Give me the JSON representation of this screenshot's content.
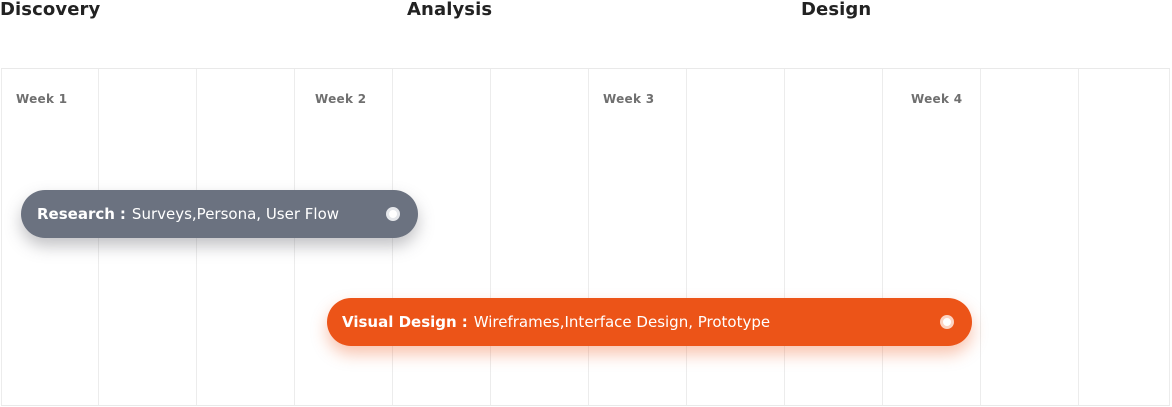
{
  "phases": [
    "Discovery",
    "Analysis",
    "Design"
  ],
  "weeks": [
    "Week 1",
    "Week 2",
    "Week 3",
    "Week 4"
  ],
  "tasks": [
    {
      "label": "Research",
      "separator": ":",
      "detail": "Surveys,Persona, User Flow",
      "color": "#6b7280"
    },
    {
      "label": "Visual Design",
      "separator": ":",
      "detail": "Wireframes,Interface Design, Prototype",
      "color": "#ec5418"
    }
  ]
}
